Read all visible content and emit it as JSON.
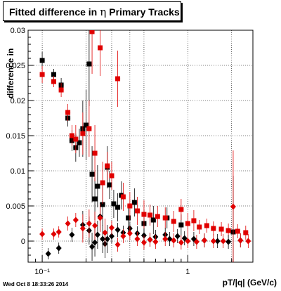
{
  "header": {
    "title_prefix": "Fitted difference in",
    "title_symbol": "η",
    "title_suffix": "Primary Tracks"
  },
  "footer": {
    "timestamp": "Wed Oct  8 18:33:26 2014"
  },
  "colors": {
    "black_series": "#000000",
    "red_series": "#e00000",
    "grid": "#000000"
  },
  "chart_data": {
    "type": "scatter",
    "title": "Fitted difference in η  Primary Tracks",
    "xlabel": "pT/|q| (GeV/c)",
    "ylabel": "difference in",
    "xscale": "log",
    "xlim": [
      0.08,
      2.8
    ],
    "ylim": [
      -0.003,
      0.03
    ],
    "grid": true,
    "x_tick_labels": [
      "10⁻¹",
      "1"
    ],
    "y_tick_labels": [
      "0",
      "0.005",
      "0.01",
      "0.015",
      "0.02",
      "0.025",
      "0.03"
    ],
    "series": [
      {
        "marker": "square",
        "color": "#000000",
        "points": [
          [
            0.1,
            0.0257,
            0.0012
          ],
          [
            0.12,
            0.0237,
            0.0008
          ],
          [
            0.135,
            0.0222,
            0.001
          ],
          [
            0.15,
            0.0175,
            0.0012
          ],
          [
            0.16,
            0.0143,
            0.0015
          ],
          [
            0.17,
            0.0133,
            0.002
          ],
          [
            0.18,
            0.014,
            0.002
          ],
          [
            0.19,
            0.016,
            0.004
          ],
          [
            0.2,
            0.0165,
            0.005
          ],
          [
            0.21,
            0.0252,
            0.006
          ],
          [
            0.22,
            0.0095,
            0.004
          ],
          [
            0.23,
            0.006,
            0.003
          ],
          [
            0.24,
            0.0078,
            0.003
          ],
          [
            0.26,
            0.0052,
            0.003
          ],
          [
            0.28,
            0.0105,
            0.003
          ],
          [
            0.29,
            0.008,
            0.002
          ],
          [
            0.31,
            0.0053,
            0.002
          ],
          [
            0.33,
            0.0048,
            0.002
          ],
          [
            0.35,
            0.0065,
            0.002
          ],
          [
            0.39,
            0.0033,
            0.002
          ],
          [
            0.43,
            0.0055,
            0.002
          ],
          [
            0.5,
            0.0025,
            0.002
          ],
          [
            0.58,
            0.003,
            0.002
          ],
          [
            0.72,
            0.0033,
            0.0015
          ],
          [
            0.9,
            0.0023,
            0.0015
          ],
          [
            2.05,
            0.0013,
            0.008
          ]
        ]
      },
      {
        "marker": "square",
        "color": "#e00000",
        "points": [
          [
            0.1,
            0.0237,
            0.0012
          ],
          [
            0.12,
            0.0227,
            0.0008
          ],
          [
            0.135,
            0.0215,
            0.001
          ],
          [
            0.15,
            0.0183,
            0.0012
          ],
          [
            0.16,
            0.015,
            0.0015
          ],
          [
            0.17,
            0.0145,
            0.002
          ],
          [
            0.19,
            0.0153,
            0.003
          ],
          [
            0.21,
            0.016,
            0.004
          ],
          [
            0.22,
            0.0298,
            0.006
          ],
          [
            0.23,
            0.0125,
            0.004
          ],
          [
            0.25,
            0.0275,
            0.004
          ],
          [
            0.26,
            0.0083,
            0.003
          ],
          [
            0.28,
            0.0107,
            0.002
          ],
          [
            0.3,
            0.0093,
            0.002
          ],
          [
            0.33,
            0.0231,
            0.004
          ],
          [
            0.36,
            0.0063,
            0.002
          ],
          [
            0.4,
            0.005,
            0.002
          ],
          [
            0.45,
            0.0043,
            0.002
          ],
          [
            0.5,
            0.0038,
            0.002
          ],
          [
            0.55,
            0.0037,
            0.0015
          ],
          [
            0.62,
            0.0035,
            0.0015
          ],
          [
            0.7,
            0.0033,
            0.0015
          ],
          [
            0.8,
            0.0028,
            0.0015
          ],
          [
            0.9,
            0.0045,
            0.0015
          ],
          [
            1.0,
            0.0025,
            0.0015
          ],
          [
            1.1,
            0.0029,
            0.0015
          ],
          [
            1.2,
            0.002,
            0.001
          ],
          [
            1.35,
            0.0022,
            0.001
          ],
          [
            1.5,
            0.0018,
            0.001
          ],
          [
            1.7,
            0.0017,
            0.001
          ],
          [
            1.9,
            0.0015,
            0.001
          ],
          [
            2.2,
            0.0014,
            0.001
          ],
          [
            2.5,
            0.0012,
            0.001
          ]
        ]
      },
      {
        "marker": "diamond",
        "color": "#000000",
        "points": [
          [
            0.11,
            -0.0018,
            0.0008
          ],
          [
            0.13,
            -0.001,
            0.0008
          ],
          [
            0.16,
            0.0009,
            0.001
          ],
          [
            0.19,
            0.0023,
            0.002
          ],
          [
            0.21,
            0.0015,
            0.002
          ],
          [
            0.22,
            -0.0008,
            0.002
          ],
          [
            0.23,
            -0.0002,
            0.002
          ],
          [
            0.24,
            0.0009,
            0.002
          ],
          [
            0.25,
            0.0035,
            0.002
          ],
          [
            0.26,
            0.0003,
            0.002
          ],
          [
            0.27,
            -0.0004,
            0.002
          ],
          [
            0.28,
            0.0003,
            0.002
          ],
          [
            0.3,
            0.0007,
            0.001
          ],
          [
            0.33,
            0.0016,
            0.001
          ],
          [
            0.36,
            0.0012,
            0.001
          ],
          [
            0.4,
            0.0018,
            0.001
          ],
          [
            0.45,
            0.0011,
            0.001
          ],
          [
            0.5,
            0.0008,
            0.001
          ],
          [
            0.55,
            0.0002,
            0.001
          ],
          [
            0.6,
            0.0006,
            0.001
          ],
          [
            0.7,
            0.0009,
            0.001
          ],
          [
            0.75,
            0.0003,
            0.001
          ],
          [
            0.85,
            0.0007,
            0.001
          ],
          [
            0.95,
            0.0004,
            0.001
          ],
          [
            1.1,
            0.0003,
            0.001
          ],
          [
            1.3,
            0.0001,
            0.001
          ],
          [
            1.6,
            0.0,
            0.001
          ],
          [
            1.9,
            -0.0001,
            0.001
          ],
          [
            2.3,
            0.0001,
            0.001
          ]
        ]
      },
      {
        "marker": "diamond",
        "color": "#e00000",
        "points": [
          [
            0.1,
            0.001,
            0.0008
          ],
          [
            0.12,
            0.001,
            0.0008
          ],
          [
            0.13,
            0.0013,
            0.0008
          ],
          [
            0.15,
            0.0025,
            0.001
          ],
          [
            0.17,
            0.003,
            0.001
          ],
          [
            0.19,
            0.0018,
            0.002
          ],
          [
            0.21,
            0.0025,
            0.002
          ],
          [
            0.23,
            0.0022,
            0.002
          ],
          [
            0.25,
            0.0033,
            0.002
          ],
          [
            0.27,
            0.0012,
            0.002
          ],
          [
            0.3,
            0.0019,
            0.001
          ],
          [
            0.33,
            -0.0005,
            0.001
          ],
          [
            0.36,
            0.0007,
            0.001
          ],
          [
            0.4,
            0.0011,
            0.001
          ],
          [
            0.45,
            0.0003,
            0.001
          ],
          [
            0.5,
            -0.0002,
            0.001
          ],
          [
            0.55,
            0.0002,
            0.001
          ],
          [
            0.6,
            -0.0001,
            0.001
          ],
          [
            0.7,
            0.0003,
            0.001
          ],
          [
            0.8,
            0.0001,
            0.001
          ],
          [
            0.9,
            -0.0002,
            0.001
          ],
          [
            1.0,
            0.0,
            0.001
          ],
          [
            1.15,
            -0.0001,
            0.001
          ],
          [
            1.3,
            0.0001,
            0.001
          ],
          [
            1.5,
            0.0,
            0.001
          ],
          [
            1.75,
            0.0,
            0.001
          ],
          [
            2.05,
            0.0049,
            0.008
          ],
          [
            2.3,
            0.0001,
            0.001
          ],
          [
            2.6,
            0.0,
            0.001
          ]
        ]
      }
    ]
  }
}
